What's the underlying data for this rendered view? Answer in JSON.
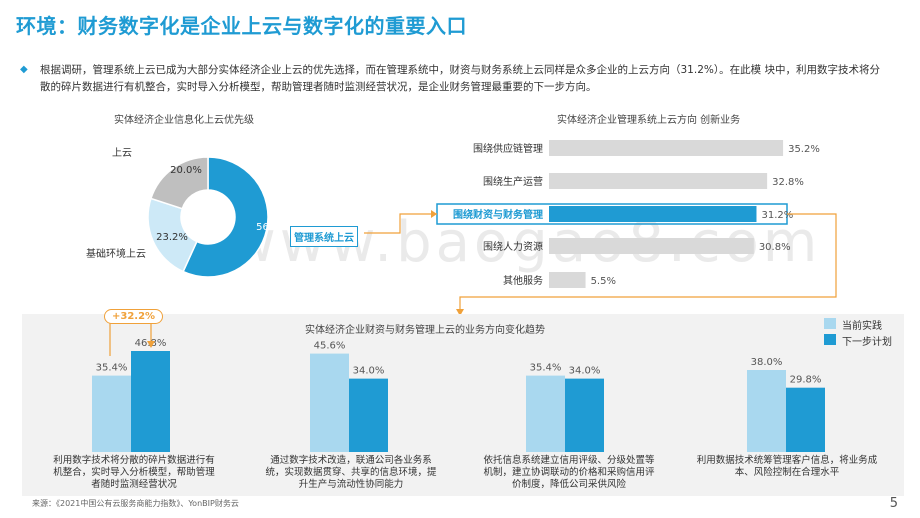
{
  "title": "环境：财务数字化是企业上云与数字化的重要入口",
  "intro": "根据调研，管理系统上云已成为大部分实体经济企业上云的优先选择，而在管理系统中，财资与财务系统上云同样是众多企业的上云方向（31.2%）。在此模 块中，利用数字技术将分散的碎片数据进行有机整合，实时导入分析模型，帮助管理者随时监测经营状况，是企业财务管理最重要的下一步方向。",
  "watermark": "www.baogao8.com",
  "source": "来源：《2021中国公有云服务商能力指数》、YonBIP财务云",
  "page_number": "5",
  "colors": {
    "accent": "#1f9bd3",
    "light": "#a9d8ef",
    "gray": "#bfbfbf",
    "paleblue": "#cde9f7",
    "bar_gray": "#d9d9d9",
    "orange": "#f0a13a"
  },
  "chart_data": [
    {
      "type": "pie",
      "title": "实体经济企业信息化上云优先级",
      "slices": [
        {
          "label": "管理系统上云",
          "value": 56.8,
          "value_text": "56.8%",
          "color": "#1f9bd3"
        },
        {
          "label": "基础环境上云",
          "value": 23.2,
          "value_text": "23.2%",
          "color": "#cde9f7"
        },
        {
          "label": "上云",
          "value": 20.0,
          "value_text": "20.0%",
          "color": "#bfbfbf"
        }
      ]
    },
    {
      "type": "bar",
      "orientation": "horizontal",
      "title": "实体经济企业管理系统上云方向 创新业务",
      "categories": [
        "围绕供应链管理",
        "围绕生产运营",
        "围绕财资与财务管理",
        "围绕人力资源",
        "其他服务"
      ],
      "values": [
        35.2,
        32.8,
        31.2,
        30.8,
        5.5
      ],
      "value_texts": [
        "35.2%",
        "32.8%",
        "31.2%",
        "30.8%",
        "5.5%"
      ],
      "highlight_index": 2,
      "xlim": [
        0,
        40
      ]
    },
    {
      "type": "bar",
      "title": "实体经济企业财资与财务管理上云的业务方向变化趋势",
      "categories": [
        "利用数字技术将分散的碎片数据进行有机整合，实时导入分析模型，帮助管理者随时监测经营状况",
        "通过数字技术改造，联通公司各业务系统，实现数据贯穿、共享的信息环境，提升生产与流动性协同能力",
        "依托信息系统建立信用评级、分级处置等机制，建立协调联动的价格和采购信用评价制度，降低公司采供风险",
        "利用数据技术统筹管理客户信息，将业务成本、风险控制在合理水平"
      ],
      "series": [
        {
          "name": "当前实践",
          "values": [
            35.4,
            45.6,
            35.4,
            38.0
          ],
          "value_texts": [
            "35.4%",
            "45.6%",
            "35.4%",
            "38.0%"
          ],
          "color": "#a9d8ef"
        },
        {
          "name": "下一步计划",
          "values": [
            46.8,
            34.0,
            34.0,
            29.8
          ],
          "value_texts": [
            "46.8%",
            "34.0%",
            "34.0%",
            "29.8%"
          ],
          "color": "#1f9bd3"
        }
      ],
      "annotation": "+32.2%",
      "ylim": [
        0,
        50
      ]
    }
  ]
}
